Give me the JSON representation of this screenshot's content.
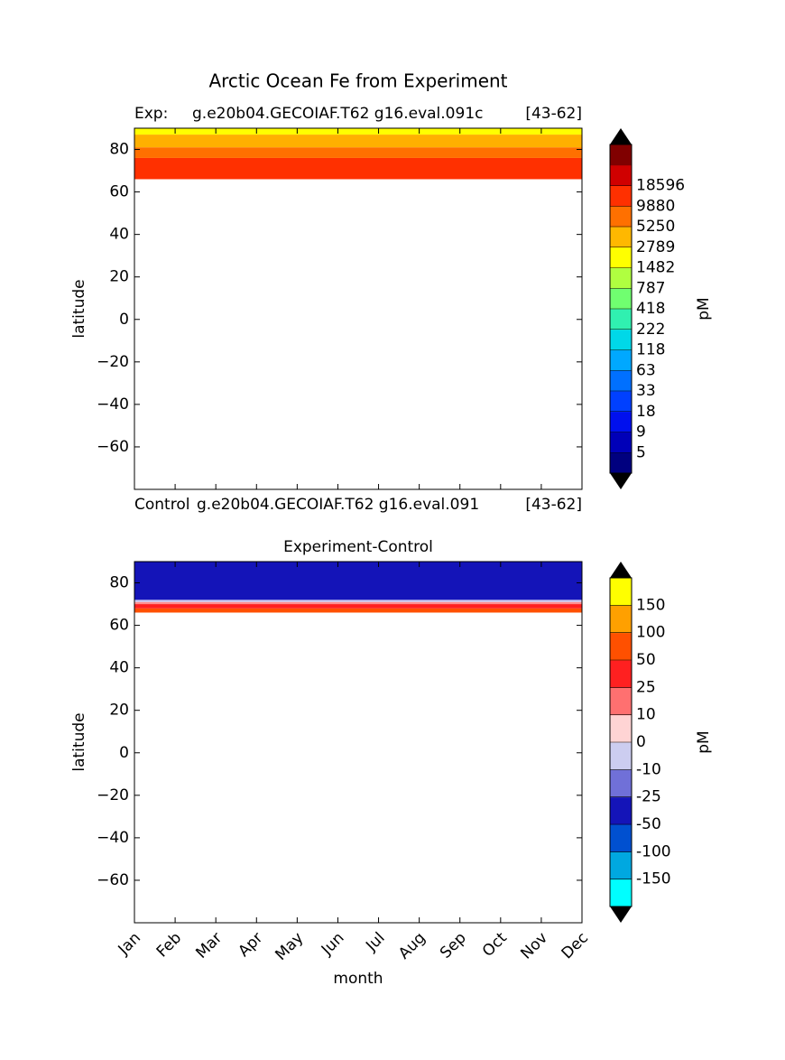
{
  "figure_title": "Arctic Ocean Fe from Experiment",
  "chart_data": [
    {
      "type": "contour",
      "title_left": "Exp:",
      "title": "g.e20b04.GECOIAF.T62 g16.eval.091c",
      "title_right": "[43-62]",
      "caption_left": "Control",
      "caption": "g.e20b04.GECOIAF.T62 g16.eval.091",
      "caption_right": "[43-62]",
      "ylabel": "latitude",
      "xlim": [
        0,
        11
      ],
      "xticks": [
        0,
        1,
        2,
        3,
        4,
        5,
        6,
        7,
        8,
        9,
        10,
        11
      ],
      "ylim": [
        -80,
        90
      ],
      "yticks": [
        {
          "value": -60,
          "label": "−60"
        },
        {
          "value": -40,
          "label": "−40"
        },
        {
          "value": -20,
          "label": "−20"
        },
        0,
        20,
        40,
        60,
        80
      ],
      "bands": [
        {
          "lat": [
            66,
            76
          ],
          "color": "#ff3000"
        },
        {
          "lat": [
            76,
            81
          ],
          "color": "#ff7000"
        },
        {
          "lat": [
            81,
            87
          ],
          "color": "#ffb000"
        },
        {
          "lat": [
            87,
            90
          ],
          "color": "#ffff00"
        }
      ],
      "colorbar": {
        "label": "pM",
        "extend_color": "#000000",
        "levels": [
          5,
          9,
          18,
          33,
          63,
          118,
          222,
          418,
          787,
          1482,
          2789,
          5250,
          9880,
          18596
        ],
        "colors": [
          "#00007f",
          "#0000b8",
          "#0010ee",
          "#0040ff",
          "#0070ff",
          "#00a8ff",
          "#00d8e8",
          "#30f0b0",
          "#70ff70",
          "#b0ff40",
          "#ffff00",
          "#ffb800",
          "#ff7000",
          "#ff3000",
          "#d00000",
          "#800000"
        ]
      }
    },
    {
      "type": "contour",
      "title": "Experiment-Control",
      "ylabel": "latitude",
      "xlabel": "month",
      "xlim": [
        0,
        11
      ],
      "xticks": [
        0,
        1,
        2,
        3,
        4,
        5,
        6,
        7,
        8,
        9,
        10,
        11
      ],
      "categories": [
        "Jan",
        "Feb",
        "Mar",
        "Apr",
        "May",
        "Jun",
        "Jul",
        "Aug",
        "Sep",
        "Oct",
        "Nov",
        "Dec"
      ],
      "ylim": [
        -80,
        90
      ],
      "yticks": [
        {
          "value": -60,
          "label": "−60"
        },
        {
          "value": -40,
          "label": "−40"
        },
        {
          "value": -20,
          "label": "−20"
        },
        0,
        20,
        40,
        60,
        80
      ],
      "bands": [
        {
          "lat": [
            66,
            68
          ],
          "color": "#ff5000"
        },
        {
          "lat": [
            68,
            70
          ],
          "color": "#ff2020"
        },
        {
          "lat": [
            70,
            71
          ],
          "color": "#ff9090"
        },
        {
          "lat": [
            71,
            72
          ],
          "color": "#c8c8f0"
        },
        {
          "lat": [
            72,
            90
          ],
          "color": "#1414b8"
        }
      ],
      "colorbar": {
        "label": "pM",
        "extend_color": "#000000",
        "levels": [
          -150,
          -100,
          -50,
          -25,
          -10,
          0,
          10,
          25,
          50,
          100,
          150
        ],
        "colors": [
          "#00ffff",
          "#00a8e0",
          "#0050d0",
          "#1414b8",
          "#7070d8",
          "#cccdf0",
          "#ffd4d4",
          "#ff7070",
          "#ff2020",
          "#ff5000",
          "#ffa000",
          "#ffff00"
        ]
      }
    }
  ]
}
